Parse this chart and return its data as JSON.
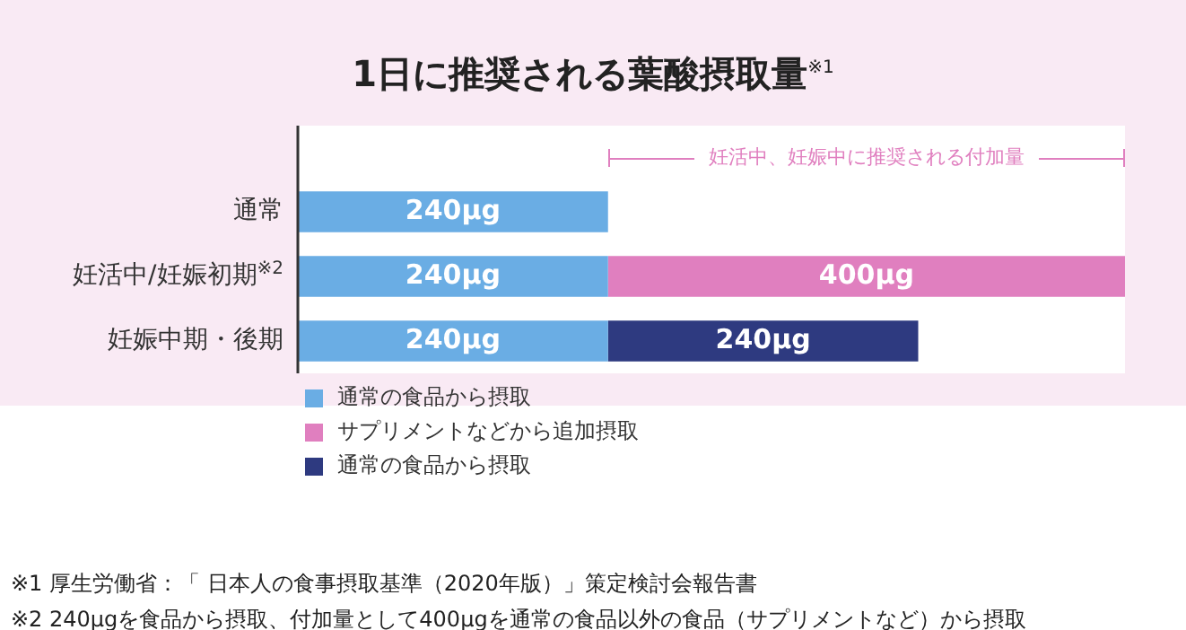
{
  "chart_data": {
    "type": "bar",
    "orientation": "horizontal",
    "stacked": true,
    "title": "1日に推奨される葉酸摂取量$^{※1}$",
    "categories": [
      "通常",
      "妊活中/妊娠初期$^{※2}$",
      "妊娠中期・後期"
    ],
    "xlim": [
      0,
      640
    ],
    "series": [
      {
        "name": "通常の食品から摂取",
        "color": "#6aade4",
        "values": [
          240,
          240,
          240
        ],
        "value_labels": [
          "240μg",
          "240μg",
          "240μg"
        ]
      },
      {
        "name": "サプリメントなどから追加摂取",
        "color": "#e07fbf",
        "values": [
          null,
          400,
          null
        ],
        "value_labels": [
          null,
          "400μg",
          null
        ]
      },
      {
        "name": "通常の食品から摂取",
        "color": "#2e3a80",
        "values": [
          null,
          null,
          240
        ],
        "value_labels": [
          null,
          null,
          "240μg"
        ]
      }
    ],
    "legend": "bottom",
    "annotations": [
      "妊活中、妊娠中に推奨される付加量",
      "※1 厚生労働省：「 日本人の食事摂取基準（2020年版）」策定検討会報告書",
      "※2 240μgを食品から摂取、付加量として400μgを通常の食品以外の食品（サプリメントなど）から摂取"
    ]
  }
}
